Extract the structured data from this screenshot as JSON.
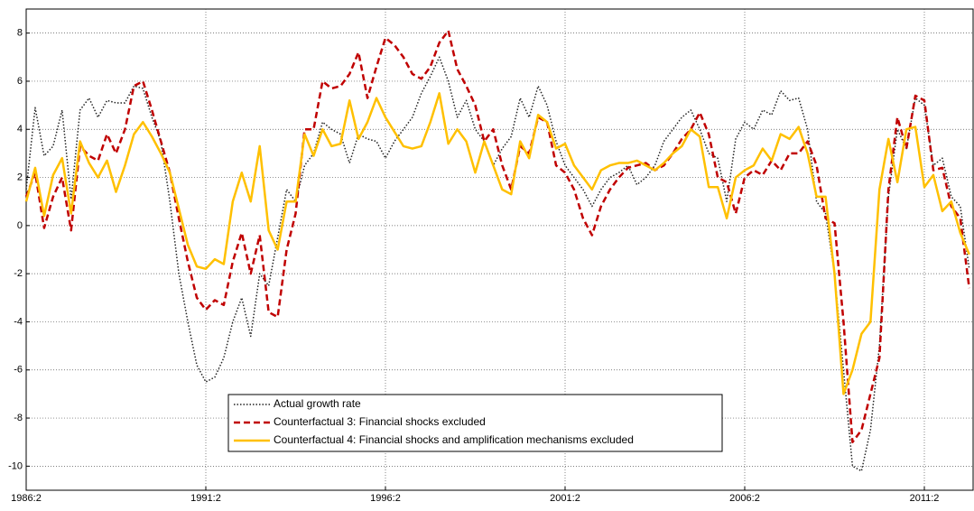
{
  "chart_data": {
    "type": "line",
    "categories": [
      "1986:2",
      null,
      null,
      null,
      null,
      null,
      null,
      null,
      null,
      null,
      null,
      null,
      null,
      null,
      null,
      null,
      null,
      null,
      null,
      null,
      "1991:2",
      null,
      null,
      null,
      null,
      null,
      null,
      null,
      null,
      null,
      null,
      null,
      null,
      null,
      null,
      null,
      null,
      null,
      null,
      null,
      "1996:2",
      null,
      null,
      null,
      null,
      null,
      null,
      null,
      null,
      null,
      null,
      null,
      null,
      null,
      null,
      null,
      null,
      null,
      null,
      null,
      "2001:2",
      null,
      null,
      null,
      null,
      null,
      null,
      null,
      null,
      null,
      null,
      null,
      null,
      null,
      null,
      null,
      null,
      null,
      null,
      null,
      "2006:2",
      null,
      null,
      null,
      null,
      null,
      null,
      null,
      null,
      null,
      null,
      null,
      null,
      null,
      null,
      null,
      null,
      null,
      null,
      null,
      "2011:2",
      null,
      null,
      null,
      null,
      null
    ],
    "series": [
      {
        "name": "Actual growth rate",
        "color": "#222222",
        "style": "dotted",
        "values": [
          1.5,
          4.9,
          2.9,
          3.3,
          4.8,
          1.1,
          4.8,
          5.3,
          4.5,
          5.2,
          5.1,
          5.1,
          5.8,
          5.7,
          4.5,
          3.5,
          1.0,
          -2.0,
          -4.0,
          -5.8,
          -6.5,
          -6.3,
          -5.5,
          -4.0,
          -3.0,
          -4.6,
          -2.0,
          -2.5,
          -0.5,
          1.5,
          1.0,
          2.5,
          3.0,
          4.3,
          4.0,
          3.8,
          2.6,
          3.8,
          3.6,
          3.5,
          2.8,
          3.5,
          4.0,
          4.5,
          5.5,
          6.2,
          7.0,
          6.0,
          4.5,
          5.2,
          4.0,
          3.5,
          2.5,
          3.2,
          3.7,
          5.3,
          4.5,
          5.8,
          5.0,
          3.5,
          2.5,
          2.0,
          1.5,
          0.8,
          1.5,
          2.0,
          2.2,
          2.5,
          1.7,
          2.0,
          2.5,
          3.5,
          4.0,
          4.5,
          4.8,
          4.0,
          3.0,
          2.8,
          1.0,
          3.6,
          4.3,
          4.0,
          4.8,
          4.6,
          5.6,
          5.2,
          5.3,
          4.0,
          1.0,
          0.5,
          -2.0,
          -6.0,
          -10.0,
          -10.2,
          -8.5,
          -5.0,
          1.2,
          4.0,
          3.2,
          5.3,
          5.0,
          2.5,
          2.8,
          1.2,
          0.8,
          -1.8
        ]
      },
      {
        "name": "Counterfactual 3: Financial shocks excluded",
        "color": "#c00000",
        "style": "dashed",
        "values": [
          1.2,
          2.2,
          -0.1,
          1.2,
          2.0,
          -0.2,
          3.3,
          2.9,
          2.7,
          3.8,
          3.0,
          4.0,
          5.8,
          6.0,
          4.8,
          3.5,
          2.2,
          0.3,
          -1.5,
          -3.0,
          -3.5,
          -3.1,
          -3.3,
          -1.5,
          -0.3,
          -2.0,
          -0.4,
          -3.6,
          -3.8,
          -1.0,
          0.5,
          4.0,
          4.0,
          6.0,
          5.7,
          5.8,
          6.3,
          7.2,
          5.3,
          6.6,
          7.8,
          7.5,
          7.0,
          6.3,
          6.1,
          6.6,
          7.6,
          8.1,
          6.5,
          5.8,
          5.0,
          3.5,
          4.0,
          2.5,
          1.5,
          3.3,
          3.0,
          4.5,
          4.3,
          2.5,
          2.2,
          1.5,
          0.3,
          -0.4,
          0.8,
          1.5,
          2.0,
          2.4,
          2.5,
          2.6,
          2.3,
          2.5,
          3.0,
          3.6,
          4.0,
          4.7,
          3.8,
          2.0,
          1.8,
          0.5,
          2.0,
          2.3,
          2.1,
          2.7,
          2.3,
          3.0,
          3.0,
          3.5,
          2.5,
          0.3,
          0.1,
          -4.0,
          -9.0,
          -8.5,
          -7.0,
          -5.5,
          1.5,
          4.5,
          3.2,
          5.4,
          5.2,
          2.3,
          2.4,
          0.8,
          0.3,
          -2.6
        ]
      },
      {
        "name": "Counterfactual 4: Financial shocks and amplification mechanisms excluded",
        "color": "#ffc000",
        "style": "solid",
        "values": [
          1.0,
          2.4,
          0.4,
          2.1,
          2.8,
          0.5,
          3.5,
          2.6,
          2.0,
          2.7,
          1.4,
          2.5,
          3.8,
          4.3,
          3.7,
          3.0,
          2.2,
          0.7,
          -0.8,
          -1.7,
          -1.8,
          -1.4,
          -1.6,
          1.0,
          2.2,
          1.0,
          3.3,
          -0.2,
          -1.0,
          1.0,
          1.0,
          3.8,
          2.9,
          4.0,
          3.3,
          3.4,
          5.2,
          3.6,
          4.3,
          5.3,
          4.5,
          3.9,
          3.3,
          3.2,
          3.3,
          4.3,
          5.5,
          3.4,
          4.0,
          3.5,
          2.2,
          3.5,
          2.5,
          1.5,
          1.3,
          3.5,
          2.8,
          4.6,
          4.3,
          3.2,
          3.4,
          2.5,
          2.0,
          1.5,
          2.3,
          2.5,
          2.6,
          2.6,
          2.7,
          2.5,
          2.3,
          2.6,
          3.0,
          3.3,
          4.0,
          3.7,
          1.6,
          1.6,
          0.3,
          2.0,
          2.3,
          2.5,
          3.2,
          2.7,
          3.8,
          3.6,
          4.1,
          3.0,
          1.2,
          1.2,
          -2.0,
          -7.0,
          -6.0,
          -4.5,
          -4.0,
          1.5,
          3.6,
          1.8,
          4.0,
          4.1,
          1.6,
          2.1,
          0.6,
          1.0,
          -0.3,
          -1.2
        ]
      }
    ],
    "ylim": [
      -11,
      9
    ],
    "yticks": [
      -10,
      -8,
      -6,
      -4,
      -2,
      0,
      2,
      4,
      6,
      8
    ],
    "grid": true,
    "legend": "lower center"
  }
}
